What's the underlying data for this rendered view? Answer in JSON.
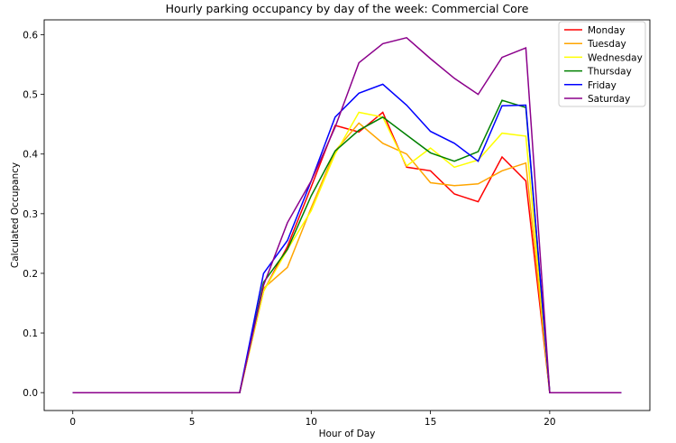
{
  "chart_data": {
    "type": "line",
    "title": "Hourly parking occupancy by day of the week: Commercial Core",
    "xlabel": "Hour of Day",
    "ylabel": "Calculated Occupancy",
    "xlim": [
      -1.2,
      24.2
    ],
    "ylim": [
      -0.03,
      0.625
    ],
    "xticks": [
      0,
      5,
      10,
      15,
      20
    ],
    "yticks": [
      0.0,
      0.1,
      0.2,
      0.3,
      0.4,
      0.5,
      0.6
    ],
    "ytick_labels": [
      "0.0",
      "0.1",
      "0.2",
      "0.3",
      "0.4",
      "0.5",
      "0.6"
    ],
    "grid": false,
    "legend_position": "top-right",
    "x": [
      0,
      1,
      2,
      3,
      4,
      5,
      6,
      7,
      8,
      9,
      10,
      11,
      12,
      13,
      14,
      15,
      16,
      17,
      18,
      19,
      20,
      21,
      22,
      23
    ],
    "series": [
      {
        "name": "Monday",
        "color": "#ff0000",
        "values": [
          0,
          0,
          0,
          0,
          0,
          0,
          0,
          0,
          0.17,
          0.245,
          0.345,
          0.448,
          0.437,
          0.47,
          0.378,
          0.372,
          0.333,
          0.32,
          0.395,
          0.355,
          0,
          0,
          0,
          0
        ]
      },
      {
        "name": "Tuesday",
        "color": "#ffa500",
        "values": [
          0,
          0,
          0,
          0,
          0,
          0,
          0,
          0,
          0.175,
          0.21,
          0.31,
          0.405,
          0.452,
          0.418,
          0.4,
          0.352,
          0.347,
          0.35,
          0.372,
          0.385,
          0,
          0,
          0,
          0
        ]
      },
      {
        "name": "Wednesday",
        "color": "#ffff00",
        "values": [
          0,
          0,
          0,
          0,
          0,
          0,
          0,
          0,
          0.17,
          0.24,
          0.305,
          0.4,
          0.47,
          0.462,
          0.38,
          0.41,
          0.378,
          0.39,
          0.435,
          0.43,
          0,
          0,
          0,
          0
        ]
      },
      {
        "name": "Thursday",
        "color": "#008000",
        "values": [
          0,
          0,
          0,
          0,
          0,
          0,
          0,
          0,
          0.185,
          0.24,
          0.33,
          0.405,
          0.44,
          0.462,
          0.432,
          0.402,
          0.388,
          0.404,
          0.49,
          0.478,
          0,
          0,
          0,
          0
        ]
      },
      {
        "name": "Friday",
        "color": "#0000ff",
        "values": [
          0,
          0,
          0,
          0,
          0,
          0,
          0,
          0,
          0.2,
          0.255,
          0.355,
          0.462,
          0.502,
          0.517,
          0.482,
          0.438,
          0.418,
          0.388,
          0.481,
          0.482,
          0,
          0,
          0,
          0
        ]
      },
      {
        "name": "Saturday",
        "color": "#8b008b",
        "values": [
          0,
          0,
          0,
          0,
          0,
          0,
          0,
          0,
          0.18,
          0.285,
          0.355,
          0.445,
          0.553,
          0.585,
          0.595,
          0.56,
          0.527,
          0.5,
          0.562,
          0.578,
          0,
          0,
          0,
          0
        ]
      }
    ]
  }
}
